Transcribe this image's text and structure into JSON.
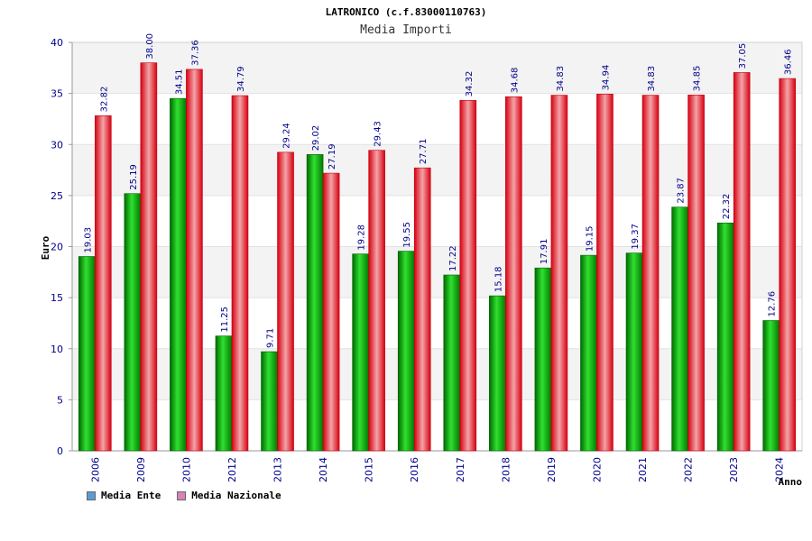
{
  "chart_data": {
    "type": "bar",
    "title": "LATRONICO (c.f.83000110763)",
    "subtitle": "Media Importi",
    "ylabel": "Euro",
    "xlabel": "Anno",
    "ylim": [
      0,
      40
    ],
    "yticks": [
      0,
      5,
      10,
      15,
      20,
      25,
      30,
      35,
      40
    ],
    "grid": true,
    "legend_position": "bottom-left",
    "categories": [
      "2006",
      "2009",
      "2010",
      "2012",
      "2013",
      "2014",
      "2015",
      "2016",
      "2017",
      "2018",
      "2019",
      "2020",
      "2021",
      "2022",
      "2023",
      "2024"
    ],
    "value_labels": true,
    "series": [
      {
        "name": "Media Ente",
        "color": "#00aa00",
        "legend_color": "#5b9bd5",
        "values": [
          19.03,
          25.19,
          34.51,
          11.25,
          9.71,
          29.02,
          19.28,
          19.55,
          17.22,
          15.18,
          17.91,
          19.15,
          19.37,
          23.87,
          22.32,
          12.76
        ]
      },
      {
        "name": "Media Nazionale",
        "color": "#e8101a",
        "legend_color": "#d982b6",
        "values": [
          32.82,
          38.0,
          37.36,
          34.79,
          29.24,
          27.19,
          29.43,
          27.71,
          34.32,
          34.68,
          34.83,
          34.94,
          34.83,
          34.85,
          37.05,
          36.46
        ]
      }
    ]
  }
}
